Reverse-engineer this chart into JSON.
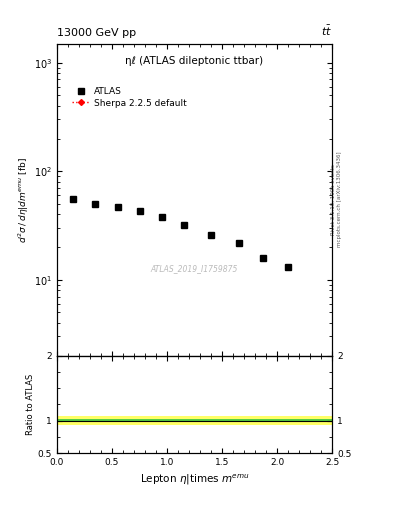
{
  "title_top": "13000 GeV pp",
  "title_top_right": "tt",
  "plot_title": "ηℓ (ATLAS dileptonic ttbar)",
  "watermark": "ATLAS_2019_I1759875",
  "right_label_top": "Rivet 3.1.10, 100k events",
  "right_label_bot": "mcplots.cern.ch [arXiv:1306.3436]",
  "xlabel": "Lepton η|times mᵉᵐᵘ",
  "ylabel_main": "d²σ / dη|dmᵉᵐᵘ [fb]",
  "ylabel_ratio": "Ratio to ATLAS",
  "data_x": [
    0.15,
    0.35,
    0.55,
    0.75,
    0.95,
    1.15,
    1.4,
    1.65,
    1.875,
    2.1
  ],
  "data_y": [
    55,
    50,
    47,
    43,
    38,
    32,
    26,
    22,
    16,
    13
  ],
  "xmin": 0,
  "xmax": 2.5,
  "ymin": 2,
  "ymax": 1500,
  "ratio_ymin": 0.5,
  "ratio_ymax": 2.0,
  "ratio_band_green_half": 0.025,
  "ratio_band_yellow_half": 0.065,
  "legend_entries": [
    "ATLAS",
    "Sherpa 2.2.5 default"
  ],
  "atlas_marker_color": "black",
  "sherpa_color": "red"
}
